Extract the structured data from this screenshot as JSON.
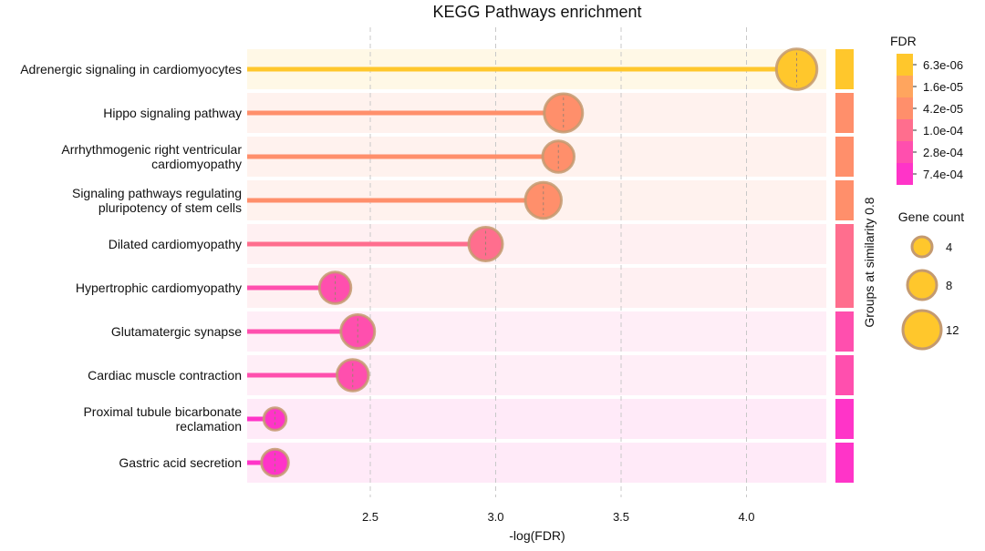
{
  "chart_data": {
    "type": "scatter",
    "title": "KEGG Pathways enrichment",
    "xlabel": "-log(FDR)",
    "xlim": [
      2.0,
      4.35
    ],
    "xticks": [
      2.5,
      3.0,
      3.5,
      4.0
    ],
    "xtick_labels": [
      "2.5",
      "3.0",
      "3.5",
      "4.0"
    ],
    "grid": "vertical dashed",
    "side_label": "Groups at similarity 0.8",
    "pathways": [
      {
        "label_lines": [
          "Adrenergic signaling in cardiomyocytes"
        ],
        "neglog_fdr": 4.2,
        "gene_count": 13,
        "color": "#FFC72C",
        "row_bg": "#FFF8E6"
      },
      {
        "label_lines": [
          "Hippo signaling pathway"
        ],
        "neglog_fdr": 3.27,
        "gene_count": 12,
        "color": "#FF8F6B",
        "row_bg": "#FFF2EE"
      },
      {
        "label_lines": [
          "Arrhythmogenic right ventricular",
          "cardiomyopathy"
        ],
        "neglog_fdr": 3.25,
        "gene_count": 9,
        "color": "#FF8F6B",
        "row_bg": "#FFF2EE"
      },
      {
        "label_lines": [
          "Signaling pathways regulating",
          "pluripotency of stem cells"
        ],
        "neglog_fdr": 3.19,
        "gene_count": 11,
        "color": "#FF8F6B",
        "row_bg": "#FFF2EE"
      },
      {
        "label_lines": [
          "Dilated cardiomyopathy"
        ],
        "neglog_fdr": 2.96,
        "gene_count": 10,
        "color": "#FF6E8E",
        "row_bg": "#FFF0F2"
      },
      {
        "label_lines": [
          "Hypertrophic cardiomyopathy"
        ],
        "neglog_fdr": 2.36,
        "gene_count": 9,
        "color": "#FF4FAE",
        "row_bg": "#FFF0F2"
      },
      {
        "label_lines": [
          "Glutamatergic synapse"
        ],
        "neglog_fdr": 2.45,
        "gene_count": 10,
        "color": "#FF4FAE",
        "row_bg": "#FFEEF7"
      },
      {
        "label_lines": [
          "Cardiac muscle contraction"
        ],
        "neglog_fdr": 2.43,
        "gene_count": 9,
        "color": "#FF4FAE",
        "row_bg": "#FFEEF7"
      },
      {
        "label_lines": [
          "Proximal tubule bicarbonate",
          "reclamation"
        ],
        "neglog_fdr": 2.12,
        "gene_count": 5,
        "color": "#FF34C8",
        "row_bg": "#FFEAF8"
      },
      {
        "label_lines": [
          "Gastric acid secretion"
        ],
        "neglog_fdr": 2.12,
        "gene_count": 7,
        "color": "#FF34C8",
        "row_bg": "#FFEAF8"
      }
    ],
    "groups": [
      {
        "rows": [
          0,
          0
        ],
        "color": "#FFC72C"
      },
      {
        "rows": [
          1,
          1
        ],
        "color": "#FF8F6B"
      },
      {
        "rows": [
          2,
          2
        ],
        "color": "#FF8F6B"
      },
      {
        "rows": [
          3,
          3
        ],
        "color": "#FF8F6B"
      },
      {
        "rows": [
          4,
          5
        ],
        "color": "#FF6E8E"
      },
      {
        "rows": [
          6,
          6
        ],
        "color": "#FF4FAE"
      },
      {
        "rows": [
          7,
          7
        ],
        "color": "#FF4FAE"
      },
      {
        "rows": [
          8,
          8
        ],
        "color": "#FF34C8"
      },
      {
        "rows": [
          9,
          9
        ],
        "color": "#FF34C8"
      }
    ],
    "fdr_legend": {
      "title": "FDR",
      "levels": [
        {
          "label": "6.3e-06",
          "color": "#FFC72C"
        },
        {
          "label": "1.6e-05",
          "color": "#FFA55E"
        },
        {
          "label": "4.2e-05",
          "color": "#FF8F6B"
        },
        {
          "label": "1.0e-04",
          "color": "#FF6E8E"
        },
        {
          "label": "2.8e-04",
          "color": "#FF4FAE"
        },
        {
          "label": "7.4e-04",
          "color": "#FF34C8"
        }
      ]
    },
    "size_legend": {
      "title": "Gene count",
      "color": "#FFC72C",
      "items": [
        {
          "label": "4",
          "count": 4
        },
        {
          "label": "8",
          "count": 8
        },
        {
          "label": "12",
          "count": 12
        }
      ]
    }
  }
}
